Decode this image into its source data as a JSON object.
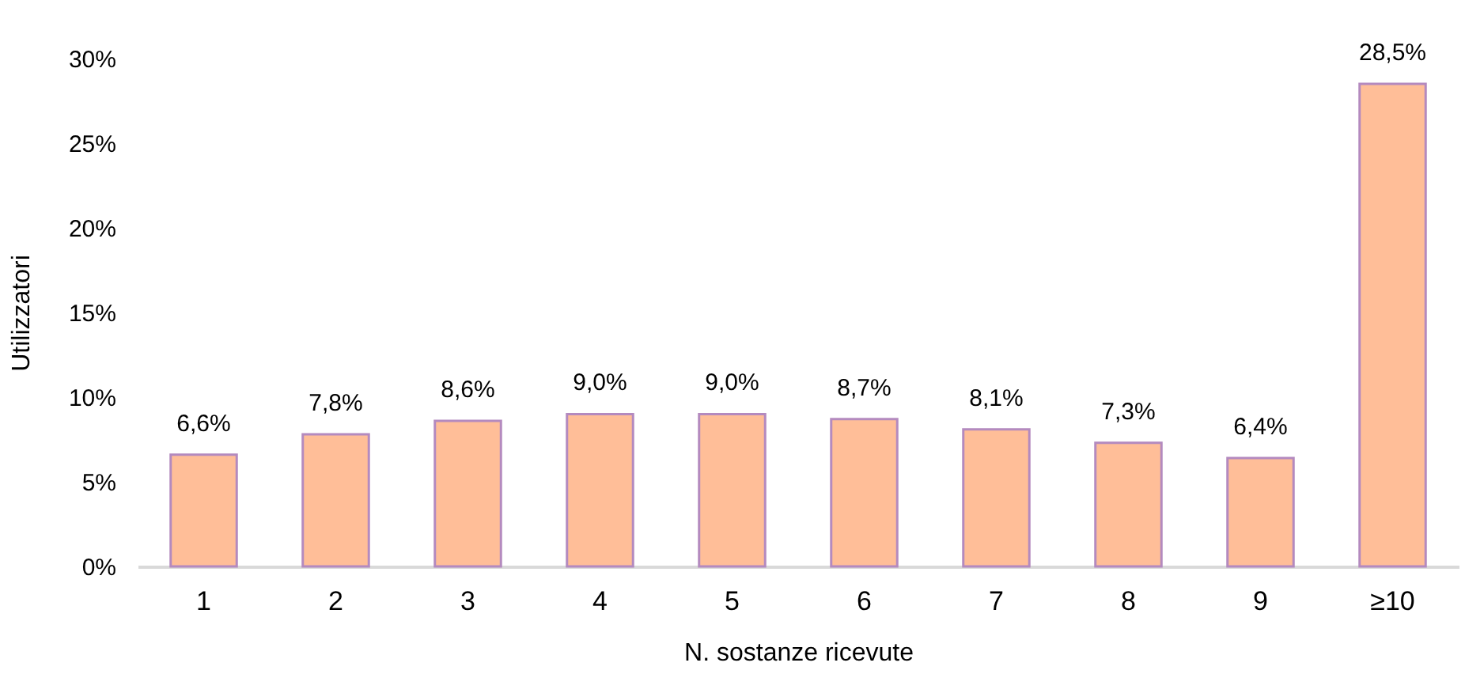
{
  "chart_data": {
    "type": "bar",
    "xlabel": "N. sostanze ricevute",
    "ylabel": "Utilizzatori",
    "categories": [
      "1",
      "2",
      "3",
      "4",
      "5",
      "6",
      "7",
      "8",
      "9",
      "≥10"
    ],
    "values": [
      6.6,
      7.8,
      8.6,
      9.0,
      9.0,
      8.7,
      8.1,
      7.3,
      6.4,
      28.5
    ],
    "value_labels": [
      "6,6%",
      "7,8%",
      "8,6%",
      "9,0%",
      "9,0%",
      "8,7%",
      "8,1%",
      "7,3%",
      "6,4%",
      "28,5%"
    ],
    "color": "#ffbe98",
    "ylim": [
      0,
      30
    ],
    "yticks": [
      {
        "value": 0,
        "label": "0%"
      },
      {
        "value": 5,
        "label": "5%"
      },
      {
        "value": 10,
        "label": "10%"
      },
      {
        "value": 15,
        "label": "15%"
      },
      {
        "value": 20,
        "label": "20%"
      },
      {
        "value": 25,
        "label": "25%"
      },
      {
        "value": 30,
        "label": "30%"
      }
    ],
    "grid": false
  }
}
